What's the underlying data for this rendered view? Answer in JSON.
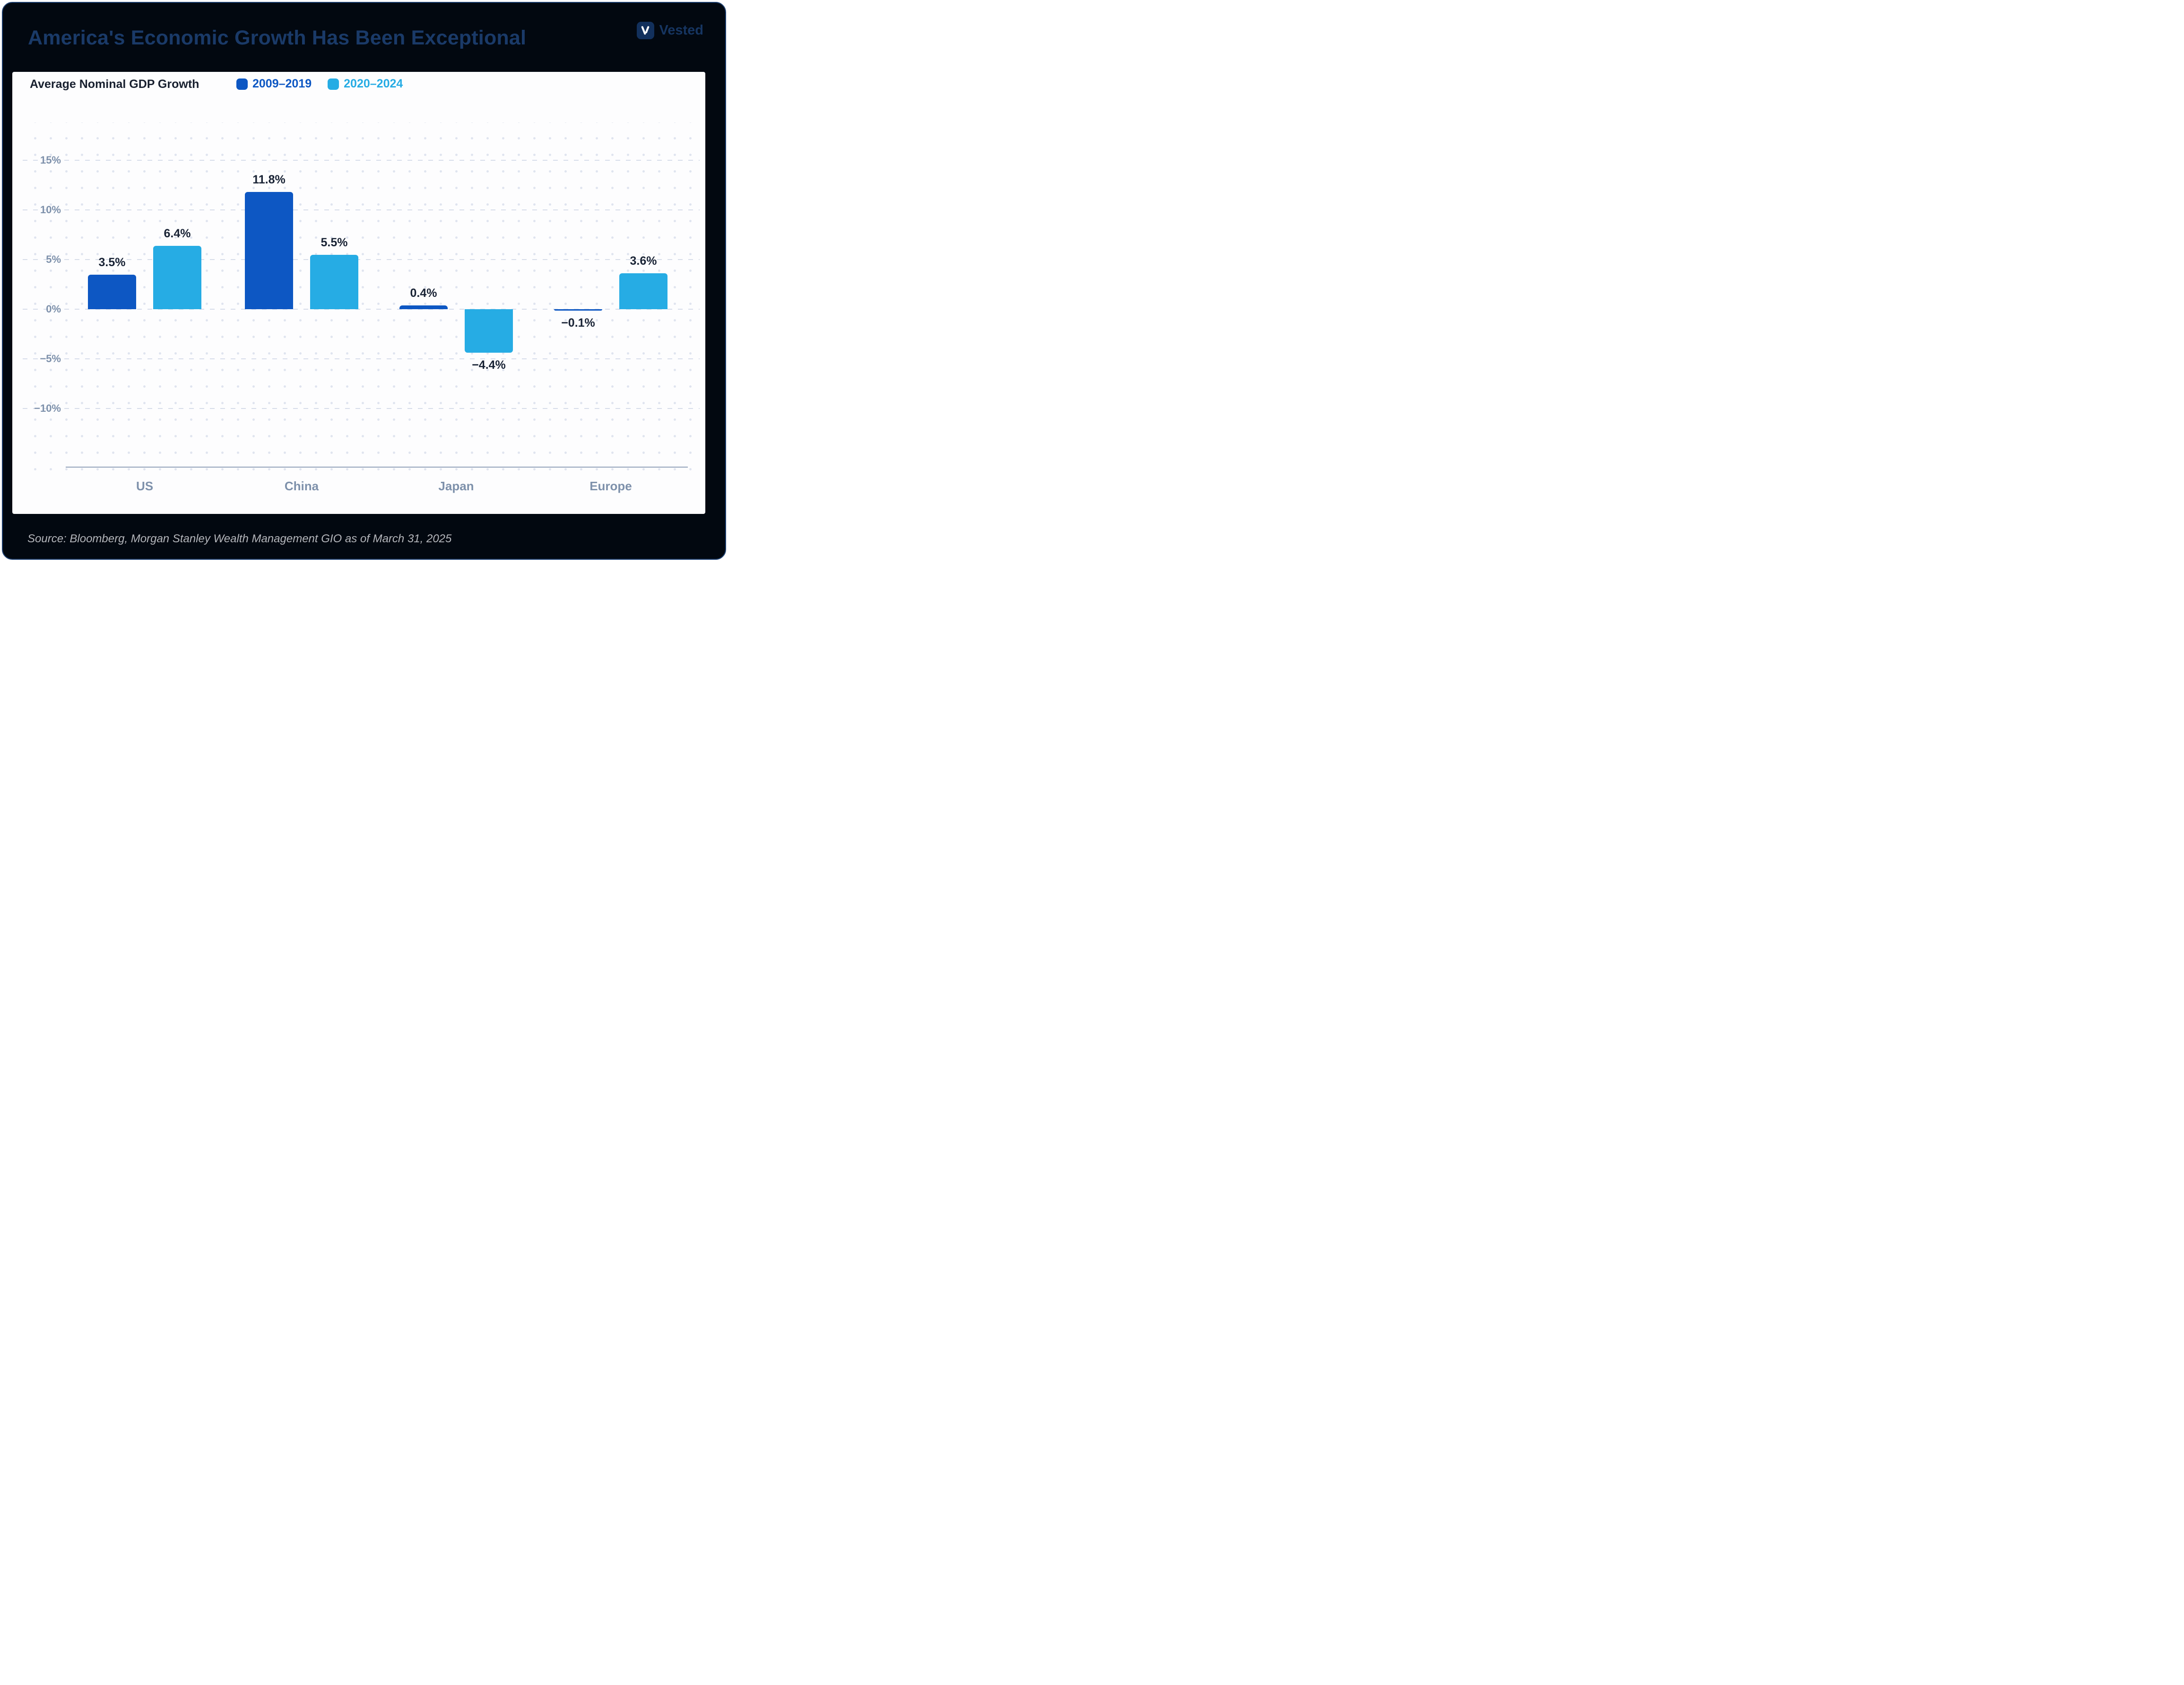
{
  "title": "America's Economic Growth Has Been Exceptional",
  "brand": {
    "name": "Vested"
  },
  "chart_data": {
    "type": "bar",
    "title": "Average Nominal GDP Growth",
    "categories": [
      "US",
      "China",
      "Japan",
      "Europe"
    ],
    "series": [
      {
        "name": "2009–2019",
        "color": "#0d57c3",
        "values": [
          3.5,
          11.8,
          0.4,
          -0.1
        ]
      },
      {
        "name": "2020–2024",
        "color": "#26ace4",
        "values": [
          6.4,
          5.5,
          -4.4,
          3.6
        ]
      }
    ],
    "value_suffix": "%",
    "y_ticks": [
      15,
      10,
      5,
      0,
      -5,
      -10
    ],
    "ylim": [
      -13,
      17
    ],
    "grid": "dashed-horizontal-with-dot-grid",
    "legend_position": "top"
  },
  "source": "Source: Bloomberg, Morgan Stanley Wealth Management GIO as of March 31, 2025",
  "colors": {
    "background": "#020810",
    "frame_border": "#1e4070",
    "title_navy": "#1a3a68",
    "card": "#fdfdfe",
    "axis_labels": "#7e91ab",
    "value_labels": "#192335",
    "source_gray": "#b4b6bb"
  }
}
